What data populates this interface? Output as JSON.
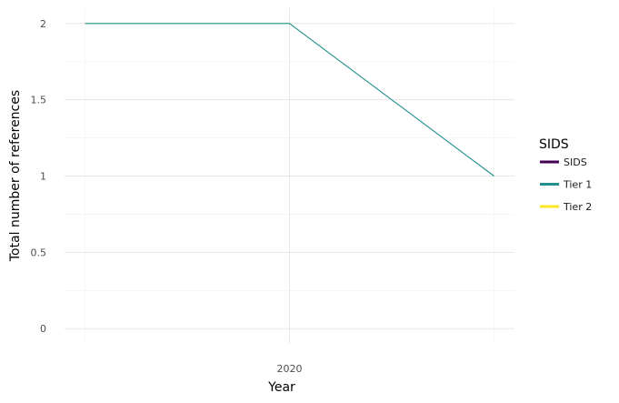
{
  "chart_data": {
    "type": "line",
    "xlabel": "Year",
    "ylabel": "Total number of references",
    "x_ticks": [
      {
        "value": 2020,
        "label": "2020"
      }
    ],
    "y_ticks": [
      {
        "value": 0,
        "label": "0"
      },
      {
        "value": 0.5,
        "label": "0.5"
      },
      {
        "value": 1,
        "label": "1"
      },
      {
        "value": 1.5,
        "label": "1.5"
      },
      {
        "value": 2,
        "label": "2"
      }
    ],
    "xlim": [
      2018.9,
      2021.1
    ],
    "ylim": [
      -0.1,
      2.1
    ],
    "grid": true,
    "legend": {
      "title": "SIDS",
      "placement": "right",
      "entries": [
        {
          "label": "SIDS",
          "color": "#440154"
        },
        {
          "label": "Tier 1",
          "color": "#21908c"
        },
        {
          "label": "Tier 2",
          "color": "#fde725"
        }
      ]
    },
    "series": [
      {
        "color": "#21908c",
        "x": [
          2019,
          2020,
          2021
        ],
        "y": [
          2,
          2,
          1
        ]
      }
    ]
  }
}
